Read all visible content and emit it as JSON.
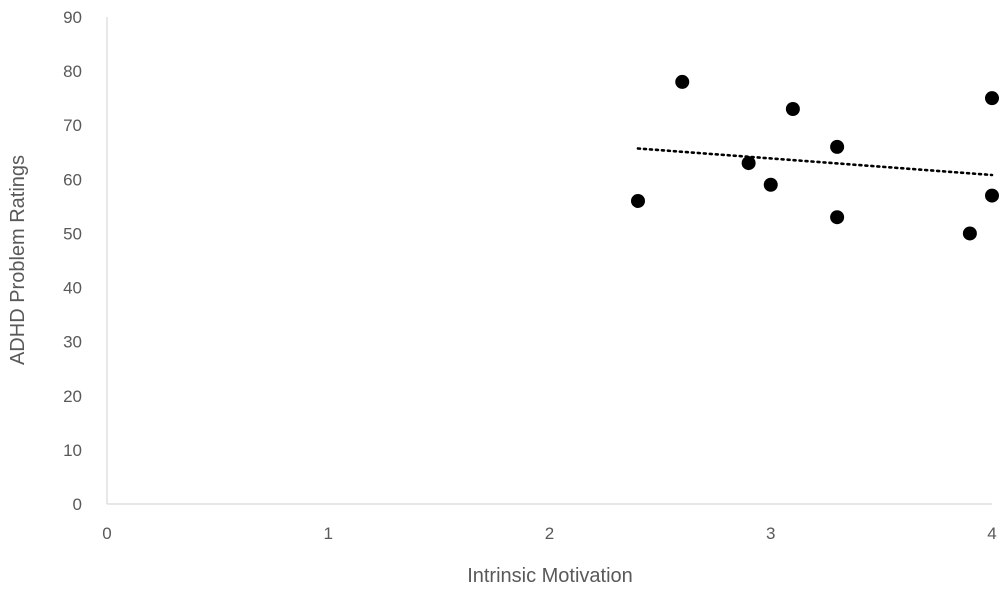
{
  "chart_data": {
    "type": "scatter",
    "xlabel": "Intrinsic Motivation",
    "ylabel": "ADHD Problem Ratings",
    "xlim": [
      0,
      4
    ],
    "ylim": [
      0,
      90
    ],
    "x_ticks": [
      0,
      1,
      2,
      3,
      4
    ],
    "y_ticks": [
      0,
      10,
      20,
      30,
      40,
      50,
      60,
      70,
      80,
      90
    ],
    "grid": false,
    "legend": "none",
    "marker_color": "#000000",
    "series": [
      {
        "values": [
          {
            "x": 2.4,
            "y": 56
          },
          {
            "x": 2.6,
            "y": 78
          },
          {
            "x": 2.9,
            "y": 63
          },
          {
            "x": 3.0,
            "y": 59
          },
          {
            "x": 3.1,
            "y": 73
          },
          {
            "x": 3.3,
            "y": 66
          },
          {
            "x": 3.3,
            "y": 53
          },
          {
            "x": 3.9,
            "y": 50
          },
          {
            "x": 4.0,
            "y": 75
          },
          {
            "x": 4.0,
            "y": 57
          }
        ]
      }
    ],
    "trendline": {
      "type": "linear",
      "style": "dotted",
      "x": [
        2.4,
        4.0
      ],
      "y": [
        65.7,
        60.8
      ]
    }
  }
}
